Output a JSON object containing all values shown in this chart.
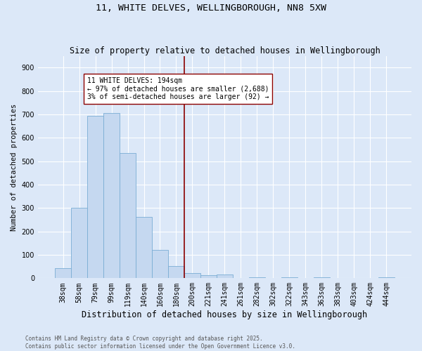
{
  "title1": "11, WHITE DELVES, WELLINGBOROUGH, NN8 5XW",
  "title2": "Size of property relative to detached houses in Wellingborough",
  "xlabel": "Distribution of detached houses by size in Wellingborough",
  "ylabel": "Number of detached properties",
  "categories": [
    "38sqm",
    "58sqm",
    "79sqm",
    "99sqm",
    "119sqm",
    "140sqm",
    "160sqm",
    "180sqm",
    "200sqm",
    "221sqm",
    "241sqm",
    "261sqm",
    "282sqm",
    "302sqm",
    "322sqm",
    "343sqm",
    "363sqm",
    "383sqm",
    "403sqm",
    "424sqm",
    "444sqm"
  ],
  "values": [
    42,
    300,
    695,
    705,
    535,
    262,
    120,
    52,
    22,
    12,
    15,
    2,
    5,
    2,
    5,
    2,
    3,
    2,
    2,
    2,
    5
  ],
  "bar_color": "#c5d8f0",
  "bar_edge_color": "#7aadd4",
  "background_color": "#dce8f8",
  "grid_color": "#ffffff",
  "vline_color": "#8b0000",
  "annotation_text": "11 WHITE DELVES: 194sqm\n← 97% of detached houses are smaller (2,688)\n3% of semi-detached houses are larger (92) →",
  "annotation_box_color": "#ffffff",
  "annotation_box_edge": "#8b0000",
  "footnote": "Contains HM Land Registry data © Crown copyright and database right 2025.\nContains public sector information licensed under the Open Government Licence v3.0.",
  "ylim": [
    0,
    950
  ],
  "yticks": [
    0,
    100,
    200,
    300,
    400,
    500,
    600,
    700,
    800,
    900
  ],
  "title1_fontsize": 9.5,
  "title2_fontsize": 8.5,
  "xlabel_fontsize": 8.5,
  "ylabel_fontsize": 7.5,
  "tick_fontsize": 7,
  "annotation_fontsize": 7,
  "footnote_fontsize": 5.5,
  "vline_pos": 8.0
}
